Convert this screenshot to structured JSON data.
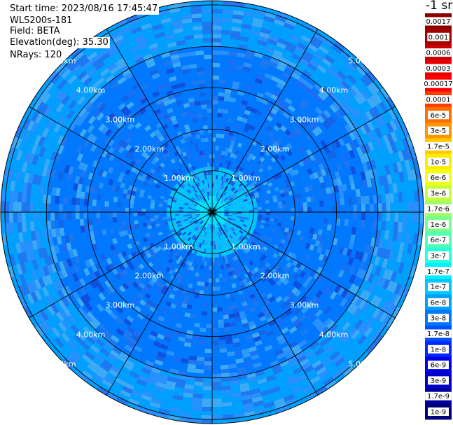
{
  "info": {
    "start_time": "Start time: 2023/08/16 17:45:47",
    "instrument": "WLS200s-181",
    "field": "Field: BETA",
    "elevation": "Elevation(deg): 35.30",
    "nrays": "NRays: 120"
  },
  "colorbar": {
    "title": "-1 sr",
    "labels": [
      "0.0017",
      "0.001",
      "0.0006",
      "0.0003",
      "0.00017",
      "0.0001",
      "6e-5",
      "3e-5",
      "1.7e-5",
      "1e-5",
      "6e-6",
      "3e-6",
      "1.7e-6",
      "1e-6",
      "6e-7",
      "3e-7",
      "1.7e-7",
      "1e-7",
      "6e-8",
      "3e-8",
      "1.7e-8",
      "1e-8",
      "6e-9",
      "3e-9",
      "1.7e-9",
      "1e-9"
    ],
    "colors": [
      "#8a0000",
      "#a50000",
      "#c80000",
      "#e60000",
      "#ff0000",
      "#ff3c00",
      "#ff6e00",
      "#ff9600",
      "#ffc800",
      "#ffeb00",
      "#f0ff14",
      "#c8ff3c",
      "#a0ff64",
      "#78ff8c",
      "#50ffb4",
      "#28ffdc",
      "#00f0ff",
      "#00c8ff",
      "#00a0ff",
      "#0078ff",
      "#0050ff",
      "#0028ff",
      "#0000e6",
      "#0000c8",
      "#0000a0",
      "#00007d"
    ]
  },
  "chart_data": {
    "type": "polar-ppi",
    "n_rays": 120,
    "range_km": [
      0,
      5.1
    ],
    "range_ring_labels": [
      "1.00km",
      "2.00km",
      "3.00km",
      "4.00km",
      "5.00km"
    ],
    "range_ring_values_km": [
      1,
      2,
      3,
      4,
      5
    ],
    "spoke_angles_deg": [
      0,
      30,
      60,
      90,
      120,
      150,
      180,
      210,
      240,
      270,
      300,
      330
    ],
    "value_bands": [
      {
        "range_km": [
          0,
          0.4
        ],
        "beta": 1.7e-07
      },
      {
        "range_km": [
          0.4,
          1.0
        ],
        "beta": 1e-07
      },
      {
        "range_km": [
          1.0,
          2.0
        ],
        "beta": 3e-08
      },
      {
        "range_km": [
          2.0,
          4.0
        ],
        "beta": 3e-08
      },
      {
        "range_km": [
          4.0,
          5.1
        ],
        "beta": 6e-08
      }
    ]
  }
}
